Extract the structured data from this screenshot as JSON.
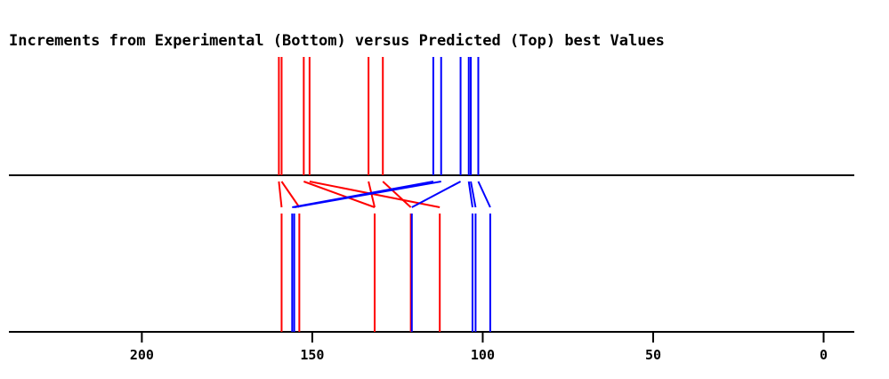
{
  "chart_data": {
    "type": "stick-spectrum",
    "title": "Increments from Experimental (Bottom) versus Predicted (Top) best Values",
    "xlabel": "",
    "ylabel": "",
    "x_reversed": true,
    "xlim": [
      239,
      -9
    ],
    "ticks": [
      {
        "value": 200,
        "label": "200"
      },
      {
        "value": 150,
        "label": "150"
      },
      {
        "value": 100,
        "label": "100"
      },
      {
        "value": 50,
        "label": "50"
      },
      {
        "value": 0,
        "label": "0"
      }
    ],
    "series_colors": {
      "red": "#ff0000",
      "blue": "#0000ff"
    },
    "sticks": [
      {
        "color": "red",
        "predicted": 159.8,
        "experimental": 159.0
      },
      {
        "color": "red",
        "predicted": 159.0,
        "experimental": 153.8
      },
      {
        "color": "red",
        "predicted": 152.5,
        "experimental": 131.7
      },
      {
        "color": "red",
        "predicted": 150.8,
        "experimental": 112.6
      },
      {
        "color": "red",
        "predicted": 133.5,
        "experimental": 131.7
      },
      {
        "color": "red",
        "predicted": 129.3,
        "experimental": 121.1
      },
      {
        "color": "blue",
        "predicted": 114.5,
        "experimental": 155.9
      },
      {
        "color": "blue",
        "predicted": 112.2,
        "experimental": 155.3
      },
      {
        "color": "blue",
        "predicted": 106.5,
        "experimental": 120.8
      },
      {
        "color": "blue",
        "predicted": 104.1,
        "experimental": 103.0
      },
      {
        "color": "blue",
        "predicted": 103.5,
        "experimental": 102.1
      },
      {
        "color": "blue",
        "predicted": 101.3,
        "experimental": 97.8
      }
    ]
  }
}
